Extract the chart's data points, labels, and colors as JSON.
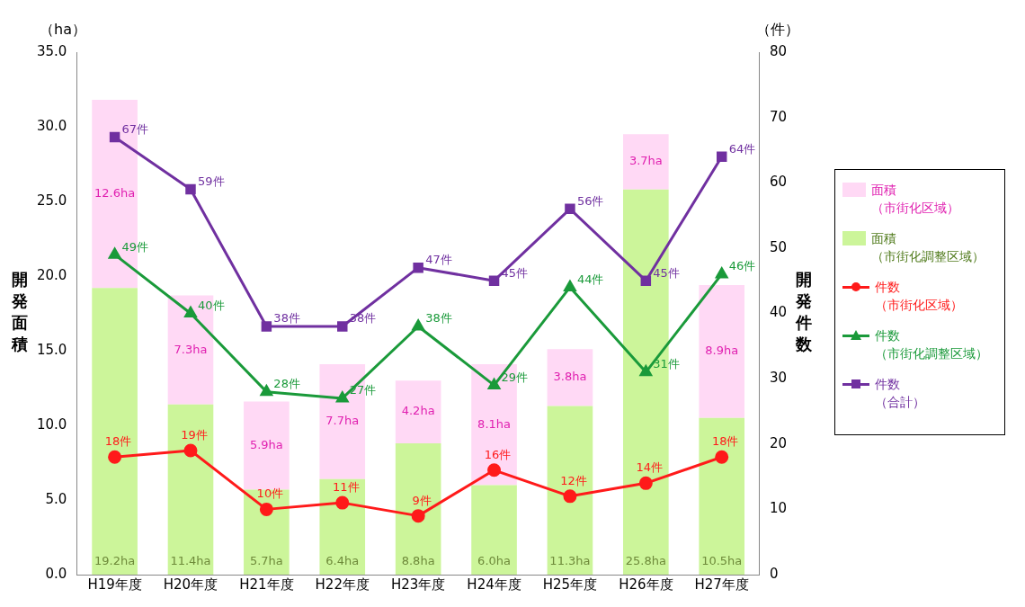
{
  "chart_data": {
    "type": "bar",
    "stacked": true,
    "categories": [
      "H19年度",
      "H20年度",
      "H21年度",
      "H22年度",
      "H23年度",
      "H24年度",
      "H25年度",
      "H26年度",
      "H27年度"
    ],
    "ylabel": "開発面積",
    "y2label": "開発件数",
    "annotations": [
      "（ha）",
      "（件）"
    ],
    "ylim": [
      0,
      35
    ],
    "yticks": [
      {
        "value": 0,
        "label": "0.0"
      },
      {
        "value": 5,
        "label": "5.0"
      },
      {
        "value": 10,
        "label": "10.0"
      },
      {
        "value": 15,
        "label": "15.0"
      },
      {
        "value": 20,
        "label": "20.0"
      },
      {
        "value": 25,
        "label": "25.0"
      },
      {
        "value": 30,
        "label": "30.0"
      },
      {
        "value": 35,
        "label": "35.0"
      }
    ],
    "y2lim": [
      0,
      80
    ],
    "y2ticks": [
      0,
      10,
      20,
      30,
      40,
      50,
      60,
      70,
      80
    ],
    "legend": "right",
    "series": [
      {
        "name": "面積（市街化調整区域）",
        "color": "#ccf59a",
        "values": [
          19.2,
          11.4,
          5.7,
          6.4,
          8.8,
          6.0,
          11.3,
          25.8,
          10.5
        ],
        "value_labels": [
          "19.2ha",
          "11.4ha",
          "5.7ha",
          "6.4ha",
          "8.8ha",
          "6.0ha",
          "11.3ha",
          "25.8ha",
          "10.5ha"
        ]
      },
      {
        "name": "面積（市街化区域）",
        "color": "#ffd9f5",
        "values": [
          12.6,
          7.3,
          5.9,
          7.7,
          4.2,
          8.1,
          3.8,
          3.7,
          8.9
        ],
        "value_labels": [
          "12.6ha",
          "7.3ha",
          "5.9ha",
          "7.7ha",
          "4.2ha",
          "8.1ha",
          "3.8ha",
          "3.7ha",
          "8.9ha"
        ]
      },
      {
        "name": "件数（市街化区域）",
        "type": "line",
        "axis": "y2",
        "marker": "circle",
        "color": "#ff1a1a",
        "values": [
          18,
          19,
          10,
          11,
          9,
          16,
          12,
          14,
          18
        ],
        "value_labels": [
          "18件",
          "19件",
          "10件",
          "11件",
          "9件",
          "16件",
          "12件",
          "14件",
          "18件"
        ]
      },
      {
        "name": "件数（市街化調整区域）",
        "type": "line",
        "axis": "y2",
        "marker": "triangle",
        "color": "#1a9a3a",
        "values": [
          49,
          40,
          28,
          27,
          38,
          29,
          44,
          31,
          46
        ],
        "value_labels": [
          "49件",
          "40件",
          "28件",
          "27件",
          "38件",
          "29件",
          "44件",
          "31件",
          "46件"
        ]
      },
      {
        "name": "件数（合計）",
        "type": "line",
        "axis": "y2",
        "marker": "square",
        "color": "#7030a0",
        "values": [
          67,
          59,
          38,
          38,
          47,
          45,
          56,
          45,
          64
        ],
        "value_labels": [
          "67件",
          "59件",
          "38件",
          "38件",
          "47件",
          "45件",
          "56件",
          "45件",
          "64件"
        ]
      }
    ]
  }
}
